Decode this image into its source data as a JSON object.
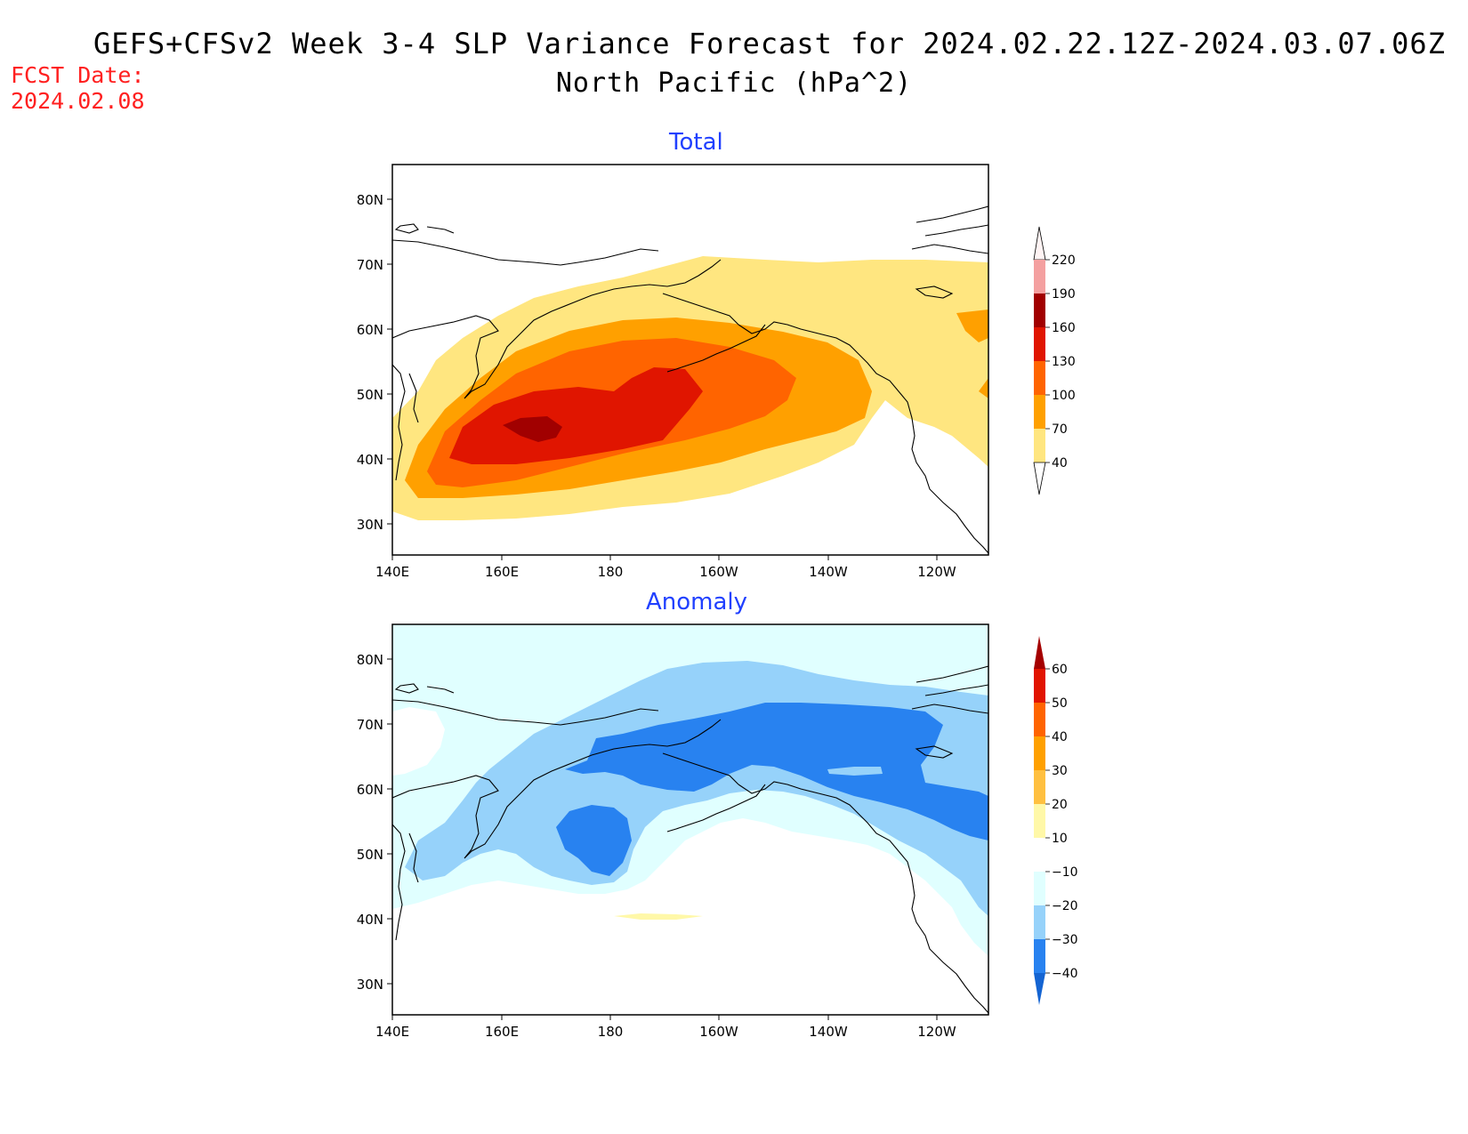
{
  "header": {
    "title": "GEFS+CFSv2 Week 3-4 SLP Variance Forecast for 2024.02.22.12Z-2024.03.07.06Z",
    "subtitle": "North Pacific (hPa^2)",
    "fcst_label": "FCST Date:",
    "fcst_date": "2024.02.08"
  },
  "axes": {
    "lat_ticks": [
      "80N",
      "70N",
      "60N",
      "50N",
      "40N",
      "30N"
    ],
    "lon_ticks": [
      "140E",
      "160E",
      "180",
      "160W",
      "140W",
      "120W"
    ]
  },
  "panels": [
    {
      "title": "Total",
      "colorbar": {
        "labels": [
          "220",
          "190",
          "160",
          "130",
          "100",
          "70",
          "40"
        ],
        "colors": [
          "#fde7e7",
          "#f4a0a0",
          "#a10000",
          "#e01500",
          "#ff6400",
          "#ffa000",
          "#ffe680"
        ]
      }
    },
    {
      "title": "Anomaly",
      "colorbar": {
        "labels": [
          "60",
          "50",
          "40",
          "30",
          "20",
          "10",
          "−10",
          "−20",
          "−30",
          "−40"
        ],
        "colors": [
          "#a50000",
          "#e11400",
          "#ff6400",
          "#ffa000",
          "#ffc040",
          "#fff8a8",
          "#ffffff",
          "#e0ffff",
          "#96d2fa",
          "#2882f0",
          "#1464d2"
        ]
      }
    }
  ]
}
